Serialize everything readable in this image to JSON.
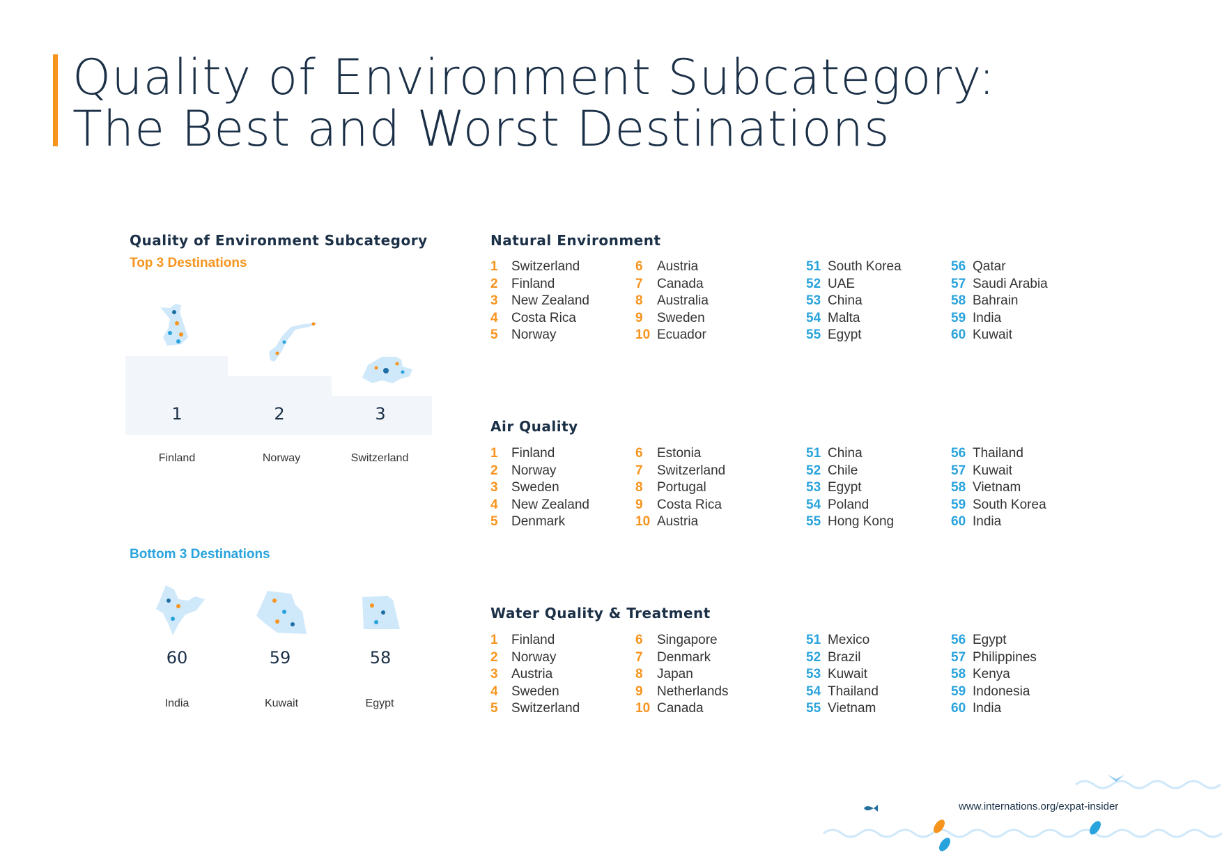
{
  "title": {
    "line1": "Quality of Environment Subcategory:",
    "line2": "The Best and Worst Destinations"
  },
  "left": {
    "heading": "Quality of Environment Subcategory",
    "top_label": "Top 3 Destinations",
    "bottom_label": "Bottom 3 Destinations",
    "top": [
      {
        "rank": "1",
        "name": "Finland"
      },
      {
        "rank": "2",
        "name": "Norway"
      },
      {
        "rank": "3",
        "name": "Switzerland"
      }
    ],
    "bottom": [
      {
        "rank": "60",
        "name": "India"
      },
      {
        "rank": "59",
        "name": "Kuwait"
      },
      {
        "rank": "58",
        "name": "Egypt"
      }
    ]
  },
  "sections": [
    {
      "title": "Natural Environment",
      "best": [
        [
          "1",
          "Switzerland"
        ],
        [
          "2",
          "Finland"
        ],
        [
          "3",
          "New Zealand"
        ],
        [
          "4",
          "Costa Rica"
        ],
        [
          "5",
          "Norway"
        ],
        [
          "6",
          "Austria"
        ],
        [
          "7",
          "Canada"
        ],
        [
          "8",
          "Australia"
        ],
        [
          "9",
          "Sweden"
        ],
        [
          "10",
          "Ecuador"
        ]
      ],
      "worst": [
        [
          "51",
          "South Korea"
        ],
        [
          "52",
          "UAE"
        ],
        [
          "53",
          "China"
        ],
        [
          "54",
          "Malta"
        ],
        [
          "55",
          "Egypt"
        ],
        [
          "56",
          "Qatar"
        ],
        [
          "57",
          "Saudi Arabia"
        ],
        [
          "58",
          "Bahrain"
        ],
        [
          "59",
          "India"
        ],
        [
          "60",
          "Kuwait"
        ]
      ]
    },
    {
      "title": "Air Quality",
      "best": [
        [
          "1",
          "Finland"
        ],
        [
          "2",
          "Norway"
        ],
        [
          "3",
          "Sweden"
        ],
        [
          "4",
          "New Zealand"
        ],
        [
          "5",
          "Denmark"
        ],
        [
          "6",
          "Estonia"
        ],
        [
          "7",
          "Switzerland"
        ],
        [
          "8",
          "Portugal"
        ],
        [
          "9",
          "Costa Rica"
        ],
        [
          "10",
          "Austria"
        ]
      ],
      "worst": [
        [
          "51",
          "China"
        ],
        [
          "52",
          "Chile"
        ],
        [
          "53",
          "Egypt"
        ],
        [
          "54",
          "Poland"
        ],
        [
          "55",
          "Hong Kong"
        ],
        [
          "56",
          "Thailand"
        ],
        [
          "57",
          "Kuwait"
        ],
        [
          "58",
          "Vietnam"
        ],
        [
          "59",
          "South Korea"
        ],
        [
          "60",
          "India"
        ]
      ]
    },
    {
      "title": "Water Quality & Treatment",
      "best": [
        [
          "1",
          "Finland"
        ],
        [
          "2",
          "Norway"
        ],
        [
          "3",
          "Austria"
        ],
        [
          "4",
          "Sweden"
        ],
        [
          "5",
          "Switzerland"
        ],
        [
          "6",
          "Singapore"
        ],
        [
          "7",
          "Denmark"
        ],
        [
          "8",
          "Japan"
        ],
        [
          "9",
          "Netherlands"
        ],
        [
          "10",
          "Canada"
        ]
      ],
      "worst": [
        [
          "51",
          "Mexico"
        ],
        [
          "52",
          "Brazil"
        ],
        [
          "53",
          "Kuwait"
        ],
        [
          "54",
          "Thailand"
        ],
        [
          "55",
          "Vietnam"
        ],
        [
          "56",
          "Egypt"
        ],
        [
          "57",
          "Philippines"
        ],
        [
          "58",
          "Kenya"
        ],
        [
          "59",
          "Indonesia"
        ],
        [
          "60",
          "India"
        ]
      ]
    }
  ],
  "footer": {
    "url": "www.internations.org/expat-insider"
  },
  "colors": {
    "navy": "#1b3047",
    "orange": "#f7941d",
    "blue": "#29a3dc"
  }
}
